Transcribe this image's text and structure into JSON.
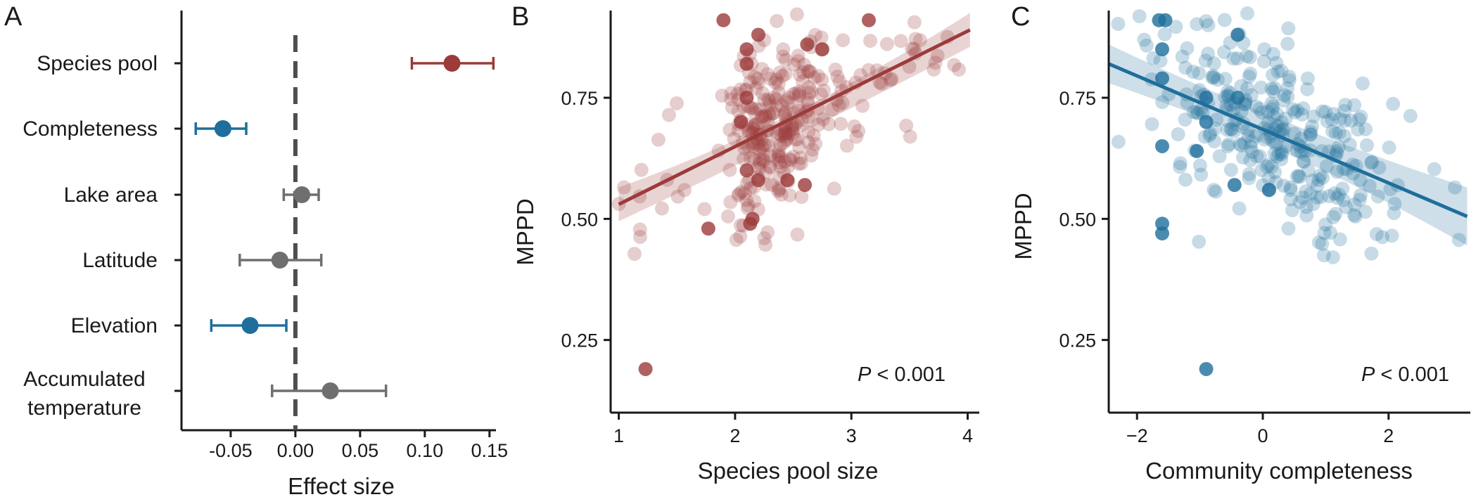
{
  "colors": {
    "red": "#9b3b3a",
    "blue": "#1f6e9c",
    "grey": "#6f6f6f",
    "red_light": "#c9898a",
    "blue_light": "#7fb3d2"
  },
  "chart_data": [
    {
      "panel": "A",
      "type": "forest",
      "xlabel": "Effect size",
      "xlim": [
        -0.088,
        0.155
      ],
      "xticks": [
        "-0.05",
        "0.00",
        "0.05",
        "0.10",
        "0.15"
      ],
      "xtick_values": [
        -0.05,
        0,
        0.05,
        0.1,
        0.15
      ],
      "reference_line": 0,
      "terms": [
        {
          "label": [
            "Species pool"
          ],
          "estimate": 0.121,
          "lower": 0.09,
          "upper": 0.153,
          "color": "#9b3b3a"
        },
        {
          "label": [
            "Completeness"
          ],
          "estimate": -0.056,
          "lower": -0.077,
          "upper": -0.038,
          "color": "#1f6e9c"
        },
        {
          "label": [
            "Lake area"
          ],
          "estimate": 0.005,
          "lower": -0.009,
          "upper": 0.018,
          "color": "#6f6f6f"
        },
        {
          "label": [
            "Latitude"
          ],
          "estimate": -0.012,
          "lower": -0.043,
          "upper": 0.02,
          "color": "#6f6f6f"
        },
        {
          "label": [
            "Elevation"
          ],
          "estimate": -0.035,
          "lower": -0.065,
          "upper": -0.007,
          "color": "#1f6e9c"
        },
        {
          "label": [
            "Accumulated",
            "temperature"
          ],
          "estimate": 0.027,
          "lower": -0.018,
          "upper": 0.07,
          "color": "#6f6f6f"
        }
      ]
    },
    {
      "panel": "B",
      "type": "scatter",
      "xlabel": "Species pool size",
      "ylabel": "MPPD",
      "xlim": [
        0.93,
        4.1
      ],
      "ylim": [
        0.1,
        0.93
      ],
      "xticks": [
        1,
        2,
        3,
        4
      ],
      "yticks": [
        "0.25",
        "0.50",
        "0.75"
      ],
      "ytick_values": [
        0.25,
        0.5,
        0.75
      ],
      "annotation": {
        "p": "P",
        "rest": " < 0.001"
      },
      "fit": {
        "x": [
          1.0,
          4.02
        ],
        "y": [
          0.53,
          0.89
        ],
        "ci_lower_start": 0.495,
        "ci_upper_start": 0.565,
        "ci_lower_mid": 0.665,
        "ci_upper_mid": 0.695,
        "ci_lower_end": 0.855,
        "ci_upper_end": 0.925
      },
      "n_points": 300,
      "point_color": "#9b3b3a",
      "points_highlight": [
        [
          1.23,
          0.19
        ],
        [
          1.9,
          0.91
        ],
        [
          2.1,
          0.85
        ],
        [
          2.1,
          0.75
        ],
        [
          2.05,
          0.7
        ],
        [
          2.1,
          0.6
        ],
        [
          2.15,
          0.5
        ],
        [
          1.77,
          0.48
        ],
        [
          2.62,
          0.86
        ],
        [
          2.75,
          0.85
        ],
        [
          2.1,
          0.82
        ],
        [
          2.2,
          0.58
        ],
        [
          2.6,
          0.57
        ],
        [
          3.15,
          0.91
        ],
        [
          2.13,
          0.49
        ],
        [
          2.45,
          0.58
        ],
        [
          2.2,
          0.88
        ]
      ]
    },
    {
      "panel": "C",
      "type": "scatter",
      "xlabel": "Community completeness",
      "ylabel": "MPPD",
      "xlim": [
        -2.45,
        3.3
      ],
      "ylim": [
        0.1,
        0.93
      ],
      "xticks": [
        "−2",
        "0",
        "2"
      ],
      "xtick_values": [
        -2,
        0,
        2
      ],
      "yticks": [
        "0.25",
        "0.50",
        "0.75"
      ],
      "ytick_values": [
        0.25,
        0.5,
        0.75
      ],
      "annotation": {
        "p": "P",
        "rest": " < 0.001"
      },
      "fit": {
        "x": [
          -2.45,
          3.25
        ],
        "y": [
          0.82,
          0.505
        ],
        "ci_lower_start": 0.78,
        "ci_upper_start": 0.86,
        "ci_lower_mid": 0.655,
        "ci_upper_mid": 0.685,
        "ci_lower_end": 0.445,
        "ci_upper_end": 0.565
      },
      "n_points": 300,
      "point_color": "#1f6e9c",
      "points_highlight": [
        [
          -0.9,
          0.19
        ],
        [
          -1.55,
          0.91
        ],
        [
          -1.65,
          0.91
        ],
        [
          -1.6,
          0.85
        ],
        [
          -1.6,
          0.79
        ],
        [
          -1.6,
          0.65
        ],
        [
          -1.6,
          0.49
        ],
        [
          -1.6,
          0.47
        ],
        [
          -0.9,
          0.75
        ],
        [
          -0.9,
          0.7
        ],
        [
          -0.4,
          0.75
        ],
        [
          -0.45,
          0.57
        ],
        [
          -0.4,
          0.88
        ],
        [
          -1.05,
          0.64
        ],
        [
          0.1,
          0.56
        ]
      ]
    }
  ],
  "panel_letters": [
    "A",
    "B",
    "C"
  ]
}
